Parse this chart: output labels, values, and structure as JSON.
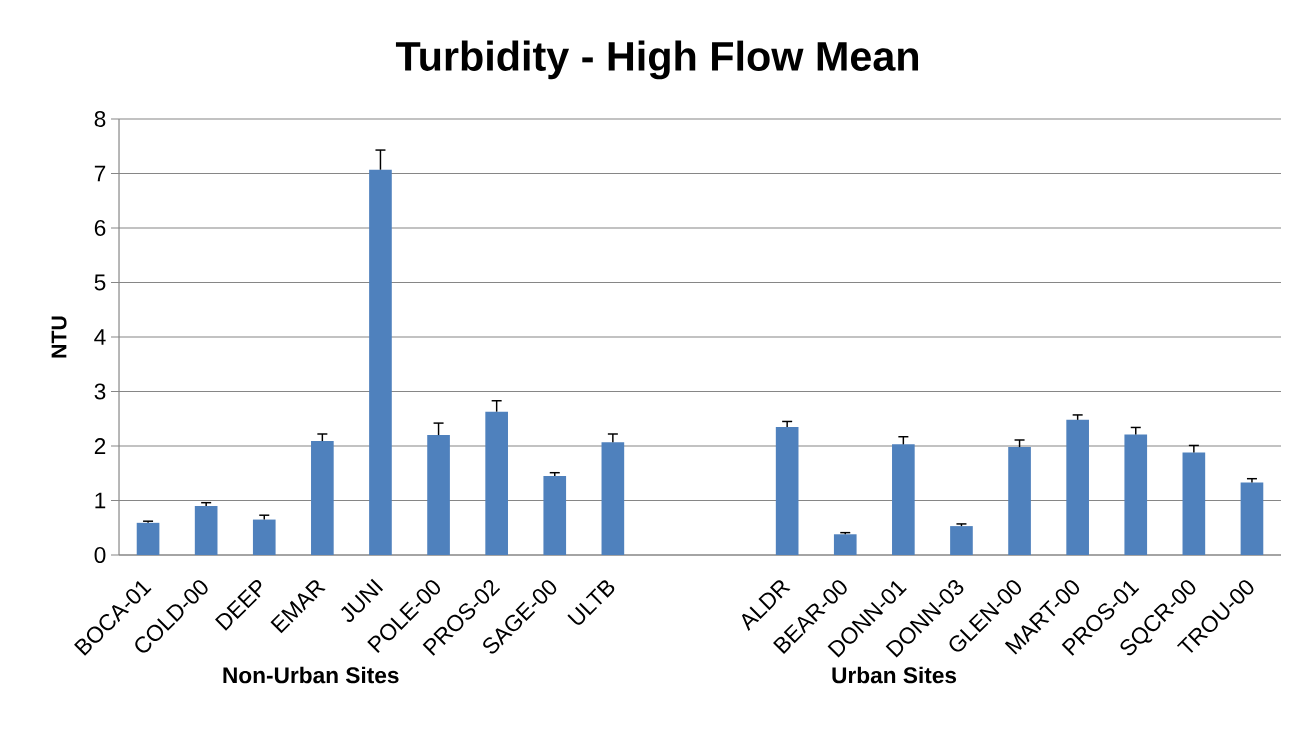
{
  "chart_data": {
    "type": "bar",
    "title": "Turbidity - High Flow Mean",
    "ylabel": "NTU",
    "categories": [
      "BOCA-01",
      "COLD-00",
      "DEEP",
      "EMAR",
      "JUNI",
      "POLE-00",
      "PROS-02",
      "SAGE-00",
      "ULTB",
      null,
      null,
      "ALDR",
      "BEAR-00",
      "DONN-01",
      "DONN-03",
      "GLEN-00",
      "MART-00",
      "PROS-01",
      "SQCR-00",
      "TROU-00"
    ],
    "values": [
      0.59,
      0.9,
      0.65,
      2.09,
      7.07,
      2.2,
      2.63,
      1.45,
      2.07,
      null,
      null,
      2.35,
      0.38,
      2.03,
      0.53,
      1.98,
      2.48,
      2.21,
      1.88,
      1.33
    ],
    "errors": [
      [
        0.59,
        0.62
      ],
      [
        0.9,
        0.96
      ],
      [
        0.65,
        0.73
      ],
      [
        2.09,
        2.22
      ],
      [
        7.07,
        7.43
      ],
      [
        2.2,
        2.42
      ],
      [
        2.63,
        2.83
      ],
      [
        1.45,
        1.51
      ],
      [
        2.07,
        2.22
      ],
      null,
      null,
      [
        2.35,
        2.45
      ],
      [
        0.38,
        0.41
      ],
      [
        2.03,
        2.17
      ],
      [
        0.53,
        0.57
      ],
      [
        1.98,
        2.11
      ],
      [
        2.48,
        2.57
      ],
      [
        2.21,
        2.34
      ],
      [
        1.88,
        2.01
      ],
      [
        1.33,
        1.4
      ]
    ],
    "color": "#4f81bd",
    "ylim": [
      0,
      8
    ],
    "yticks": [
      0,
      1,
      2,
      3,
      4,
      5,
      6,
      7,
      8
    ],
    "grid": "y",
    "annotations": [
      "Non-Urban Sites",
      "Urban Sites"
    ]
  }
}
